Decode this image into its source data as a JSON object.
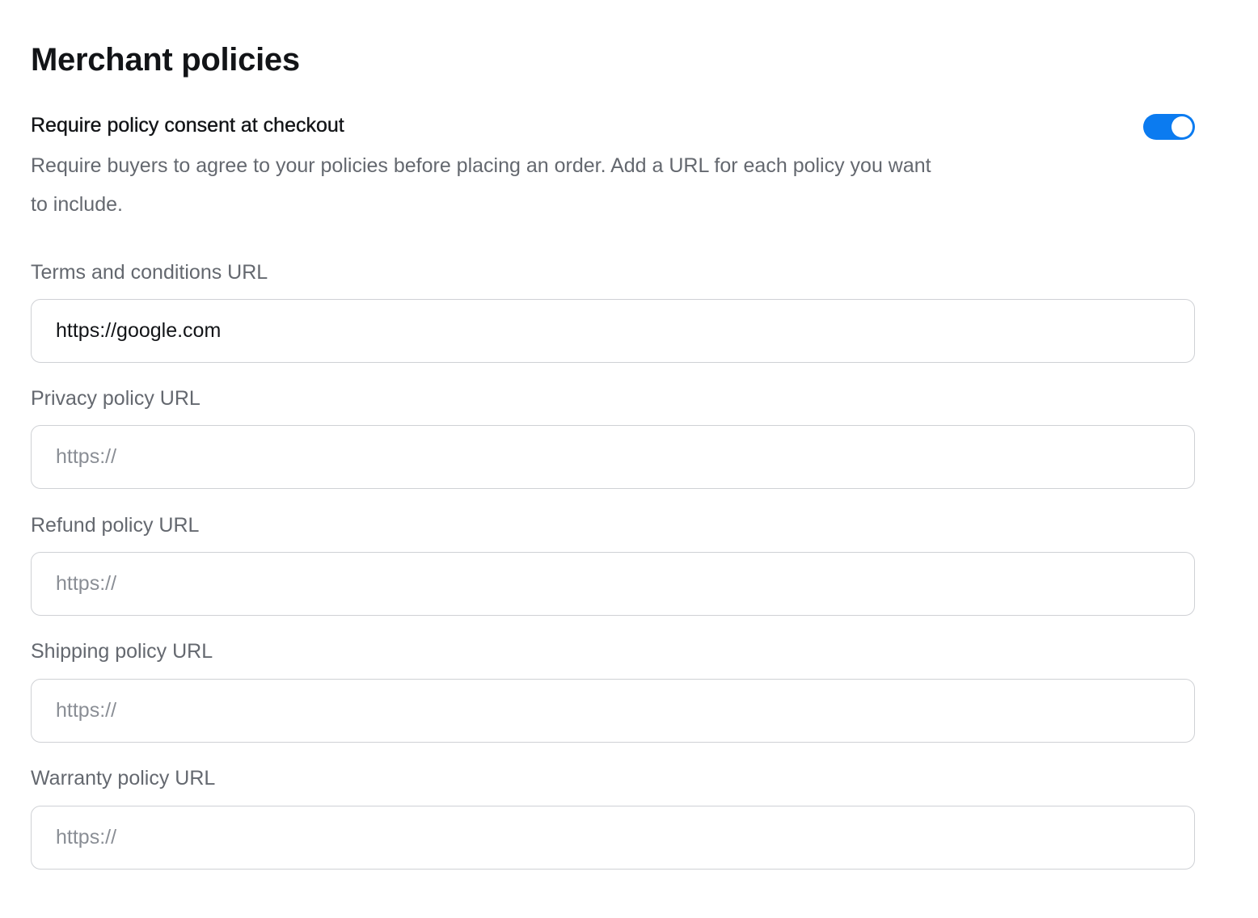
{
  "header": {
    "title": "Merchant policies"
  },
  "consent": {
    "title": "Require policy consent at checkout",
    "description": "Require buyers to agree to your policies before placing an order. Add a URL for each policy you want to include.",
    "toggle_on": true,
    "toggle_color": "#0b7bf0"
  },
  "fields": [
    {
      "label": "Terms and conditions URL",
      "value": "https://google.com",
      "placeholder": "https://"
    },
    {
      "label": "Privacy policy URL",
      "value": "",
      "placeholder": "https://"
    },
    {
      "label": "Refund policy URL",
      "value": "",
      "placeholder": "https://"
    },
    {
      "label": "Shipping policy URL",
      "value": "",
      "placeholder": "https://"
    },
    {
      "label": "Warranty policy URL",
      "value": "",
      "placeholder": "https://"
    }
  ]
}
